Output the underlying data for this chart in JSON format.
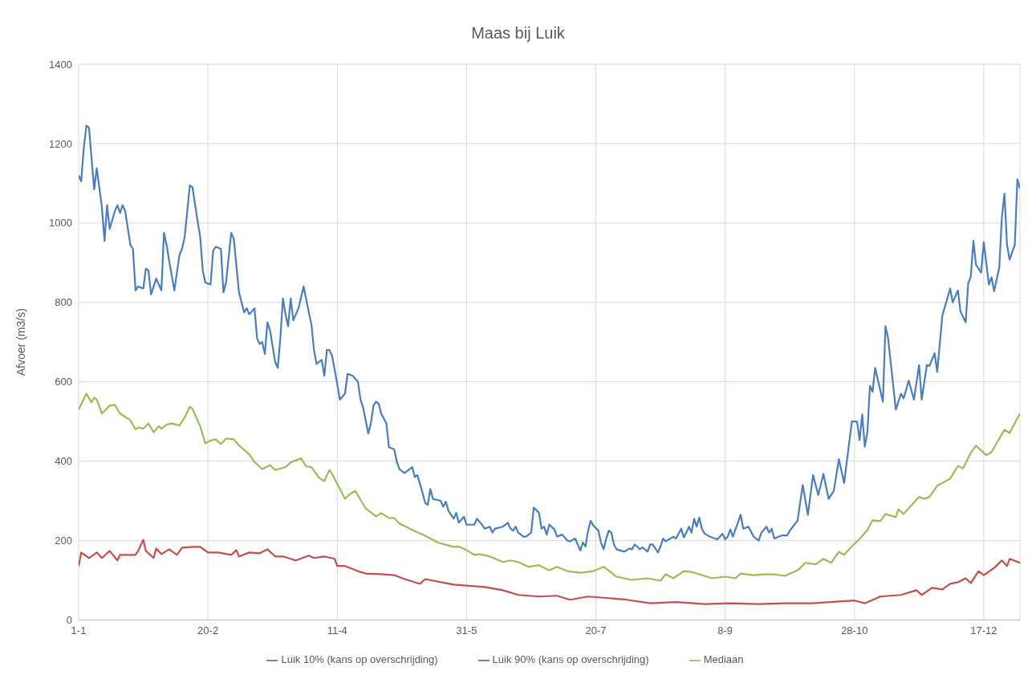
{
  "chart_data": {
    "type": "line",
    "title": "Maas bij Luik",
    "ylabel": "Afvoer (m3/s)",
    "xlim": [
      "--01-01",
      "--12-31"
    ],
    "xticks": [
      {
        "value": "--01-01",
        "label": "1-1"
      },
      {
        "value": "--02-20",
        "label": "20-2"
      },
      {
        "value": "--04-11",
        "label": "11-4"
      },
      {
        "value": "--05-31",
        "label": "31-5"
      },
      {
        "value": "--07-20",
        "label": "20-7"
      },
      {
        "value": "--09-08",
        "label": "8-9"
      },
      {
        "value": "--10-28",
        "label": "28-10"
      },
      {
        "value": "--12-17",
        "label": "17-12"
      }
    ],
    "ylim": [
      0,
      1400
    ],
    "yticks": [
      0,
      200,
      400,
      600,
      800,
      1000,
      1200,
      1400
    ],
    "grid": true,
    "legend": "bottom",
    "marker": "none",
    "line_style": "solid",
    "series": [
      {
        "name": "Luik 10% (kans op overschrijding)",
        "color": "#4a7ebb",
        "x": [
          "--01-01",
          "--01-02",
          "--01-03",
          "--01-04",
          "--01-05",
          "--01-07",
          "--01-08",
          "--01-10",
          "--01-11",
          "--01-12",
          "--01-13",
          "--01-15",
          "--01-16",
          "--01-17",
          "--01-18",
          "--01-19",
          "--01-21",
          "--01-22",
          "--01-23",
          "--01-24",
          "--01-26",
          "--01-27",
          "--01-28",
          "--01-29",
          "--01-31",
          "--02-02",
          "--02-03",
          "--02-04",
          "--02-05",
          "--02-07",
          "--02-09",
          "--02-10",
          "--02-11",
          "--02-13",
          "--02-14",
          "--02-16",
          "--02-17",
          "--02-18",
          "--02-19",
          "--02-21",
          "--02-22",
          "--02-23",
          "--02-25",
          "--02-26",
          "--02-27",
          "--03-01",
          "--03-02",
          "--03-04",
          "--03-06",
          "--03-07",
          "--03-08",
          "--03-10",
          "--03-11",
          "--03-12",
          "--03-13",
          "--03-14",
          "--03-15",
          "--03-16",
          "--03-18",
          "--03-19",
          "--03-20",
          "--03-21",
          "--03-22",
          "--03-23",
          "--03-24",
          "--03-25",
          "--03-27",
          "--03-29",
          "--03-31",
          "--04-01",
          "--04-02",
          "--04-03",
          "--04-05",
          "--04-06",
          "--04-07",
          "--04-08",
          "--04-09",
          "--04-11",
          "--04-12",
          "--04-14",
          "--04-15",
          "--04-17",
          "--04-19",
          "--04-20",
          "--04-21",
          "--04-23",
          "--04-24",
          "--04-25",
          "--04-26",
          "--04-27",
          "--04-28",
          "--04-30",
          "--05-01",
          "--05-03",
          "--05-04",
          "--05-05",
          "--05-07",
          "--05-08",
          "--05-10",
          "--05-11",
          "--05-12",
          "--05-14",
          "--05-15",
          "--05-16",
          "--05-17",
          "--05-18",
          "--05-21",
          "--05-22",
          "--05-23",
          "--05-24",
          "--05-26",
          "--05-27",
          "--05-28",
          "--05-30",
          "--05-31",
          "--06-03",
          "--06-04",
          "--06-06",
          "--06-07",
          "--06-09",
          "--06-10",
          "--06-11",
          "--06-14",
          "--06-16",
          "--06-17",
          "--06-18",
          "--06-19",
          "--06-20",
          "--06-22",
          "--06-23",
          "--06-25",
          "--06-26",
          "--06-28",
          "--06-29",
          "--06-30",
          "--07-01",
          "--07-02",
          "--07-04",
          "--07-05",
          "--07-07",
          "--07-09",
          "--07-10",
          "--07-12",
          "--07-13",
          "--07-14",
          "--07-15",
          "--07-16",
          "--07-17",
          "--07-18",
          "--07-19",
          "--07-21",
          "--07-22",
          "--07-23",
          "--07-24",
          "--07-25",
          "--07-26",
          "--07-27",
          "--07-28",
          "--07-31",
          "--08-02",
          "--08-03",
          "--08-04",
          "--08-05",
          "--08-06",
          "--08-07",
          "--08-09",
          "--08-10",
          "--08-11",
          "--08-13",
          "--08-14",
          "--08-15",
          "--08-16",
          "--08-19",
          "--08-20",
          "--08-22",
          "--08-23",
          "--08-24",
          "--08-25",
          "--08-26",
          "--08-27",
          "--08-28",
          "--08-29",
          "--08-30",
          "--08-31",
          "--09-02",
          "--09-05",
          "--09-06",
          "--09-07",
          "--09-08",
          "--09-09",
          "--09-10",
          "--09-11",
          "--09-12",
          "--09-14",
          "--09-15",
          "--09-17",
          "--09-19",
          "--09-21",
          "--09-22",
          "--09-24",
          "--09-25",
          "--09-26",
          "--09-27",
          "--09-30",
          "--10-02",
          "--10-03",
          "--10-06",
          "--10-08",
          "--10-10",
          "--10-12",
          "--10-14",
          "--10-16",
          "--10-18",
          "--10-20",
          "--10-22",
          "--10-24",
          "--10-27",
          "--10-29",
          "--10-30",
          "--10-31",
          "--11-01",
          "--11-02",
          "--11-03",
          "--11-04",
          "--11-05",
          "--11-08",
          "--11-09",
          "--11-10",
          "--11-13",
          "--11-15",
          "--11-16",
          "--11-18",
          "--11-20",
          "--11-22",
          "--11-23",
          "--11-25",
          "--11-26",
          "--11-28",
          "--11-29",
          "--12-01",
          "--12-04",
          "--12-05",
          "--12-07",
          "--12-08",
          "--12-10",
          "--12-11",
          "--12-12",
          "--12-13",
          "--12-14",
          "--12-16",
          "--12-17",
          "--12-19",
          "--12-20",
          "--12-21",
          "--12-23",
          "--12-24",
          "--12-25",
          "--12-26",
          "--12-27",
          "--12-29",
          "--12-30",
          "--12-31"
        ],
        "values": [
          1120,
          1105,
          1190,
          1245,
          1240,
          1085,
          1138,
          1040,
          955,
          1045,
          985,
          1030,
          1045,
          1025,
          1045,
          1030,
          945,
          935,
          830,
          840,
          835,
          885,
          880,
          820,
          860,
          830,
          975,
          945,
          905,
          830,
          920,
          935,
          965,
          1095,
          1090,
          1005,
          965,
          880,
          850,
          845,
          930,
          940,
          935,
          825,
          850,
          975,
          960,
          825,
          775,
          785,
          770,
          785,
          710,
          695,
          700,
          670,
          750,
          730,
          650,
          635,
          710,
          810,
          770,
          740,
          810,
          755,
          785,
          840,
          775,
          745,
          680,
          645,
          655,
          615,
          680,
          680,
          665,
          595,
          555,
          570,
          620,
          615,
          600,
          555,
          535,
          470,
          495,
          540,
          550,
          545,
          520,
          495,
          435,
          430,
          400,
          380,
          370,
          375,
          385,
          360,
          365,
          320,
          295,
          290,
          330,
          305,
          300,
          285,
          298,
          275,
          255,
          270,
          245,
          260,
          240,
          240,
          255,
          240,
          230,
          235,
          220,
          230,
          235,
          245,
          230,
          225,
          235,
          220,
          210,
          210,
          220,
          283,
          270,
          230,
          235,
          215,
          240,
          228,
          210,
          215,
          200,
          198,
          205,
          190,
          175,
          195,
          185,
          225,
          250,
          238,
          225,
          195,
          178,
          205,
          225,
          220,
          190,
          178,
          172,
          180,
          178,
          190,
          185,
          178,
          183,
          172,
          190,
          190,
          170,
          185,
          205,
          198,
          210,
          205,
          230,
          208,
          220,
          235,
          220,
          255,
          235,
          258,
          230,
          218,
          210,
          203,
          210,
          217,
          203,
          210,
          228,
          210,
          228,
          265,
          230,
          235,
          210,
          200,
          220,
          235,
          220,
          230,
          205,
          213,
          213,
          225,
          250,
          340,
          265,
          365,
          315,
          368,
          305,
          325,
          405,
          345,
          500,
          500,
          453,
          518,
          437,
          473,
          590,
          575,
          635,
          550,
          740,
          710,
          530,
          570,
          558,
          603,
          555,
          642,
          555,
          642,
          640,
          672,
          625,
          767,
          835,
          800,
          830,
          777,
          750,
          848,
          865,
          955,
          895,
          875,
          952,
          845,
          863,
          828,
          888,
          1013,
          1074,
          945,
          908,
          945,
          1110,
          1087
        ]
      },
      {
        "name": "Luik 90% (kans op overschrijding)",
        "color": "#c0504d",
        "x": [
          "--01-01",
          "--01-02",
          "--01-05",
          "--01-08",
          "--01-10",
          "--01-13",
          "--01-16",
          "--01-17",
          "--01-23",
          "--01-24",
          "--01-26",
          "--01-27",
          "--01-30",
          "--01-31",
          "--02-02",
          "--02-05",
          "--02-08",
          "--02-10",
          "--02-14",
          "--02-17",
          "--02-20",
          "--02-24",
          "--03-01",
          "--03-03",
          "--03-04",
          "--03-08",
          "--03-12",
          "--03-15",
          "--03-18",
          "--03-21",
          "--03-26",
          "--03-31",
          "--04-02",
          "--04-06",
          "--04-10",
          "--04-11",
          "--04-14",
          "--04-19",
          "--04-22",
          "--04-29",
          "--05-03",
          "--05-07",
          "--05-13",
          "--05-15",
          "--05-26",
          "--06-07",
          "--06-14",
          "--06-20",
          "--06-28",
          "--07-05",
          "--07-10",
          "--07-17",
          "--07-25",
          "--08-01",
          "--08-10",
          "--08-20",
          "--08-31",
          "--09-10",
          "--09-21",
          "--10-01",
          "--10-12",
          "--10-28",
          "--11-01",
          "--11-07",
          "--11-15",
          "--11-21",
          "--11-23",
          "--11-27",
          "--12-01",
          "--12-04",
          "--12-07",
          "--12-10",
          "--12-12",
          "--12-15",
          "--12-17",
          "--12-21",
          "--12-24",
          "--12-26",
          "--12-27",
          "--12-31"
        ],
        "values": [
          136,
          170,
          156,
          170,
          156,
          174,
          150,
          164,
          164,
          174,
          202,
          174,
          156,
          180,
          166,
          178,
          164,
          182,
          184,
          184,
          170,
          170,
          164,
          176,
          160,
          170,
          168,
          178,
          160,
          160,
          150,
          162,
          156,
          160,
          154,
          136,
          136,
          123,
          117,
          115,
          113,
          103,
          91,
          103,
          89,
          83,
          75,
          63,
          59,
          61,
          51,
          59,
          55,
          51,
          42,
          45,
          40,
          42,
          40,
          42,
          42,
          49,
          42,
          59,
          63,
          75,
          63,
          81,
          77,
          91,
          95,
          105,
          93,
          123,
          113,
          131,
          150,
          136,
          154,
          144
        ]
      },
      {
        "name": "Mediaan",
        "color": "#9bbb59",
        "x": [
          "--01-01",
          "--01-04",
          "--01-06",
          "--01-07",
          "--01-08",
          "--01-10",
          "--01-13",
          "--01-15",
          "--01-17",
          "--01-21",
          "--01-23",
          "--01-24",
          "--01-26",
          "--01-28",
          "--01-30",
          "--02-01",
          "--02-02",
          "--02-04",
          "--02-06",
          "--02-09",
          "--02-11",
          "--02-13",
          "--02-14",
          "--02-17",
          "--02-19",
          "--02-21",
          "--02-23",
          "--02-25",
          "--02-27",
          "--03-02",
          "--03-04",
          "--03-08",
          "--03-10",
          "--03-13",
          "--03-16",
          "--03-18",
          "--03-22",
          "--03-24",
          "--03-28",
          "--03-30",
          "--04-01",
          "--04-04",
          "--04-06",
          "--04-08",
          "--04-09",
          "--04-14",
          "--04-16",
          "--04-18",
          "--04-22",
          "--04-26",
          "--04-28",
          "--05-01",
          "--05-03",
          "--05-05",
          "--05-10",
          "--05-15",
          "--05-20",
          "--05-26",
          "--05-28",
          "--05-31",
          "--06-03",
          "--06-05",
          "--06-09",
          "--06-14",
          "--06-17",
          "--06-20",
          "--06-24",
          "--06-28",
          "--07-02",
          "--07-05",
          "--07-09",
          "--07-14",
          "--07-19",
          "--07-23",
          "--07-28",
          "--08-03",
          "--08-09",
          "--08-14",
          "--08-16",
          "--08-19",
          "--08-23",
          "--08-26",
          "--08-30",
          "--09-03",
          "--09-08",
          "--09-12",
          "--09-14",
          "--09-19",
          "--09-23",
          "--09-27",
          "--10-01",
          "--10-06",
          "--10-09",
          "--10-13",
          "--10-16",
          "--10-19",
          "--10-22",
          "--10-24",
          "--10-27",
          "--10-30",
          "--11-02",
          "--11-04",
          "--11-07",
          "--11-09",
          "--11-13",
          "--11-14",
          "--11-16",
          "--11-22",
          "--11-24",
          "--11-26",
          "--11-29",
          "--12-04",
          "--12-07",
          "--12-09",
          "--12-12",
          "--12-14",
          "--12-18",
          "--12-20",
          "--12-23",
          "--12-25",
          "--12-27",
          "--12-31"
        ],
        "values": [
          530,
          570,
          548,
          560,
          555,
          520,
          540,
          542,
          520,
          503,
          480,
          485,
          482,
          495,
          473,
          488,
          482,
          492,
          495,
          490,
          510,
          537,
          532,
          488,
          445,
          452,
          455,
          443,
          457,
          455,
          440,
          417,
          398,
          380,
          390,
          378,
          385,
          397,
          407,
          387,
          385,
          358,
          350,
          378,
          368,
          305,
          318,
          325,
          281,
          261,
          269,
          257,
          257,
          243,
          227,
          212,
          195,
          184,
          185,
          176,
          164,
          166,
          160,
          146,
          150,
          146,
          134,
          138,
          125,
          134,
          123,
          119,
          123,
          134,
          109,
          101,
          105,
          99,
          115,
          105,
          123,
          121,
          113,
          105,
          109,
          105,
          117,
          113,
          115,
          115,
          111,
          125,
          144,
          140,
          154,
          144,
          172,
          164,
          186,
          204,
          227,
          251,
          249,
          267,
          259,
          279,
          267,
          310,
          305,
          310,
          338,
          356,
          388,
          382,
          421,
          439,
          415,
          423,
          457,
          479,
          471,
          520
        ]
      }
    ]
  }
}
